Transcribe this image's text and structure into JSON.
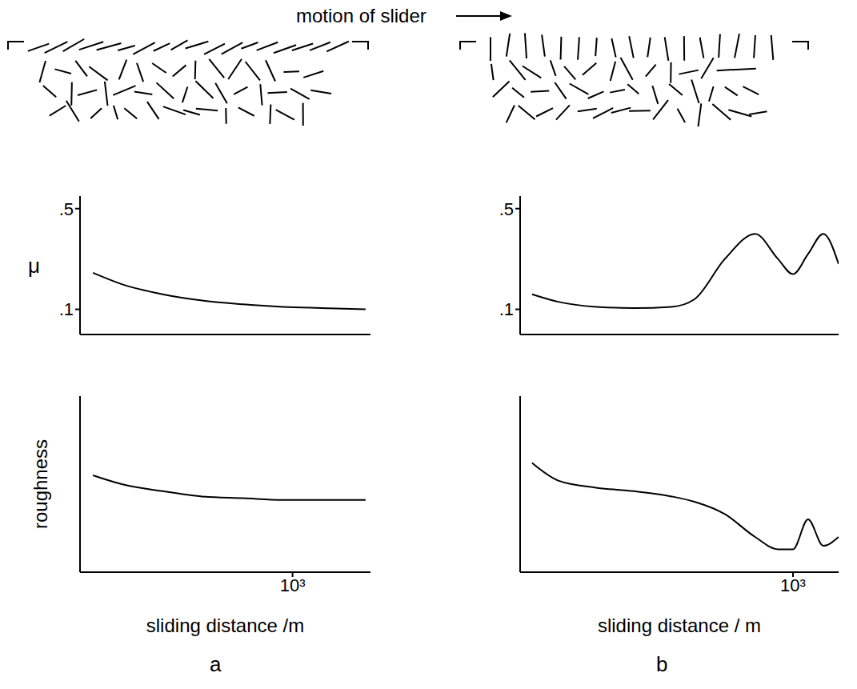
{
  "title": "motion of slider",
  "panel_labels": [
    "a",
    "b"
  ],
  "chart_data": [
    {
      "type": "line",
      "ylabel": "μ",
      "x": [
        60,
        90,
        160,
        280,
        500,
        870,
        1500,
        2800
      ],
      "values": [
        0.245,
        0.2,
        0.16,
        0.135,
        0.12,
        0.11,
        0.105,
        0.1
      ],
      "color": "#000000",
      "log": "x",
      "xlim": [
        50,
        3000
      ],
      "xticks": [],
      "ylim": [
        0,
        0.55
      ],
      "yticks": [
        {
          "value": 0.1,
          "label": ".1"
        },
        {
          "value": 0.5,
          "label": ".5"
        }
      ],
      "tick_labels": "y"
    },
    {
      "type": "line",
      "ylabel": "roughness",
      "xlabel": "sliding distance /m",
      "x": [
        60,
        90,
        160,
        280,
        500,
        870,
        1500,
        2800
      ],
      "values": [
        0.55,
        0.5,
        0.46,
        0.43,
        0.42,
        0.41,
        0.41,
        0.41
      ],
      "color": "#000000",
      "log": "x",
      "xlim": [
        50,
        3000
      ],
      "xticks": [
        {
          "value": 1000,
          "label": "10³"
        }
      ],
      "ylim": [
        0,
        1
      ],
      "yticks": [],
      "tick_labels": "x"
    },
    {
      "type": "line",
      "x": [
        57,
        76,
        115,
        174,
        264,
        339,
        473,
        660,
        848,
        1000,
        1180,
        1395,
        1650
      ],
      "values": [
        0.16,
        0.13,
        0.11,
        0.105,
        0.11,
        0.14,
        0.3,
        0.4,
        0.3,
        0.24,
        0.32,
        0.4,
        0.28
      ],
      "color": "#000000",
      "log": "x",
      "xlim": [
        50,
        1650
      ],
      "xticks": [],
      "ylim": [
        0,
        0.55
      ],
      "yticks": [
        {
          "value": 0.1,
          "label": ".1"
        },
        {
          "value": 0.5,
          "label": ".5"
        }
      ],
      "tick_labels": "y"
    },
    {
      "type": "line",
      "xlabel": "sliding distance / m",
      "x": [
        57,
        76,
        115,
        174,
        264,
        339,
        473,
        660,
        848,
        1000,
        1180,
        1395,
        1650
      ],
      "values": [
        0.62,
        0.52,
        0.48,
        0.46,
        0.43,
        0.4,
        0.33,
        0.2,
        0.13,
        0.13,
        0.3,
        0.15,
        0.2
      ],
      "color": "#000000",
      "log": "x",
      "xlim": [
        50,
        1650
      ],
      "xticks": [
        {
          "value": 1000,
          "label": "10³"
        }
      ],
      "ylim": [
        0,
        1
      ],
      "yticks": [],
      "tick_labels": "x"
    }
  ]
}
